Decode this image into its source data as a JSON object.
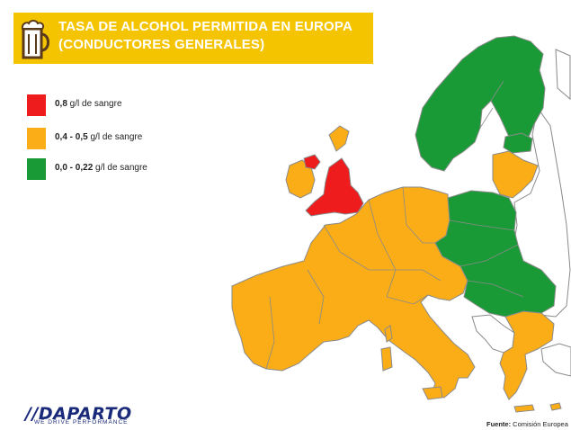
{
  "title": {
    "line1": "TASA DE ALCOHOL PERMITIDA EN EUROPA",
    "line2": "(CONDUCTORES GENERALES)"
  },
  "colors": {
    "title_band": "#f5c400",
    "red": "#ee1c1c",
    "orange": "#fbad17",
    "green": "#1a9a36",
    "white_land": "#ffffff",
    "border": "#8a8a8a"
  },
  "legend": [
    {
      "value": "0,8",
      "unit": " g/l de sangre",
      "color": "#ee1c1c"
    },
    {
      "value": "0,4 - 0,5",
      "unit": " g/l de sangre",
      "color": "#fbad17"
    },
    {
      "value": "0,0 - 0,22",
      "unit": " g/l de sangre",
      "color": "#1a9a36"
    }
  ],
  "logo": {
    "name": "//DAPARTO",
    "tagline": "WE DRIVE PERFORMANCE"
  },
  "source": {
    "label": "Fuente:",
    "text": " Comisión Europea"
  },
  "icon": "beer-mug-icon"
}
